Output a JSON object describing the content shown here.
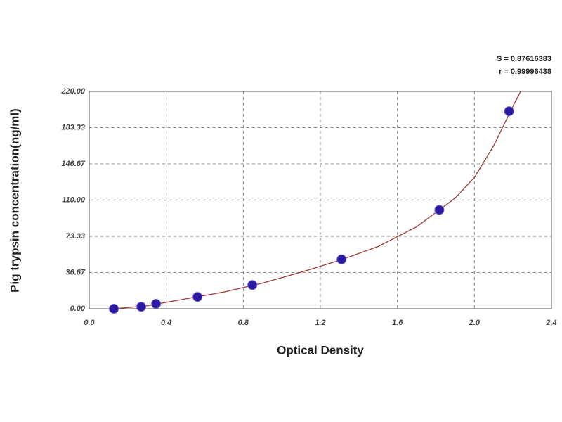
{
  "chart_data": {
    "type": "scatter",
    "annotations": [
      "S = 0.87616383",
      "r = 0.99996438"
    ],
    "x_label": "Optical Density",
    "y_label": "Pig trypsin concentration(ng/ml)",
    "xlim": [
      0,
      2.4
    ],
    "xticks": [
      {
        "value": 0,
        "label": "0.0"
      },
      0.4,
      0.8,
      1.2,
      1.6,
      {
        "value": 2,
        "label": "2.0"
      },
      2.4
    ],
    "ylim": [
      0,
      220
    ],
    "yticks": [
      {
        "value": 0,
        "label": "0.00"
      },
      36.67,
      73.33,
      {
        "value": 110,
        "label": "110.00"
      },
      146.67,
      183.33,
      {
        "value": 220,
        "label": "220.00"
      }
    ],
    "grid": true,
    "series": [
      {
        "color": "#2b1aa0",
        "x": [
          0.128,
          0.27,
          0.347,
          0.562,
          0.847,
          1.31,
          1.818,
          2.18
        ],
        "values": [
          0,
          2,
          5,
          12,
          24,
          50,
          100,
          200
        ]
      }
    ],
    "fit": {
      "color": "#a03838",
      "x": [
        0.13,
        0.3,
        0.5,
        0.7,
        0.9,
        1.1,
        1.3,
        1.5,
        1.7,
        1.9,
        2.0,
        2.1,
        2.2,
        2.24
      ],
      "values": [
        0,
        3,
        10,
        17,
        26,
        37,
        49,
        63,
        83,
        112,
        133,
        165,
        205,
        220
      ]
    }
  }
}
